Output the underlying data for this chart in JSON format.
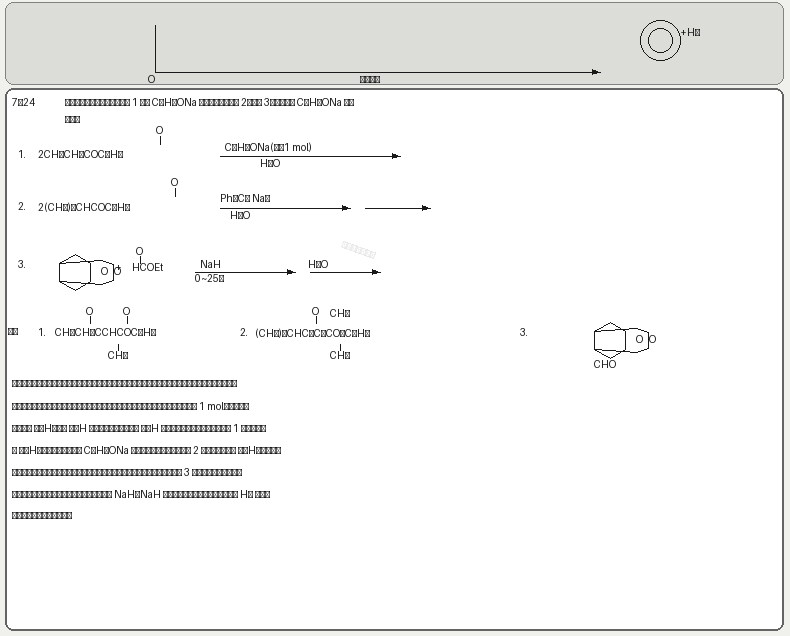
{
  "bg_color": "#f0f0ec",
  "box_bg": "#ffffff",
  "text_color": "#1a1a1a",
  "top_bg": "#e0e0dc",
  "watermark_color": "#c8c8c8",
  "border_color": "#666666",
  "line_color": "#222222"
}
